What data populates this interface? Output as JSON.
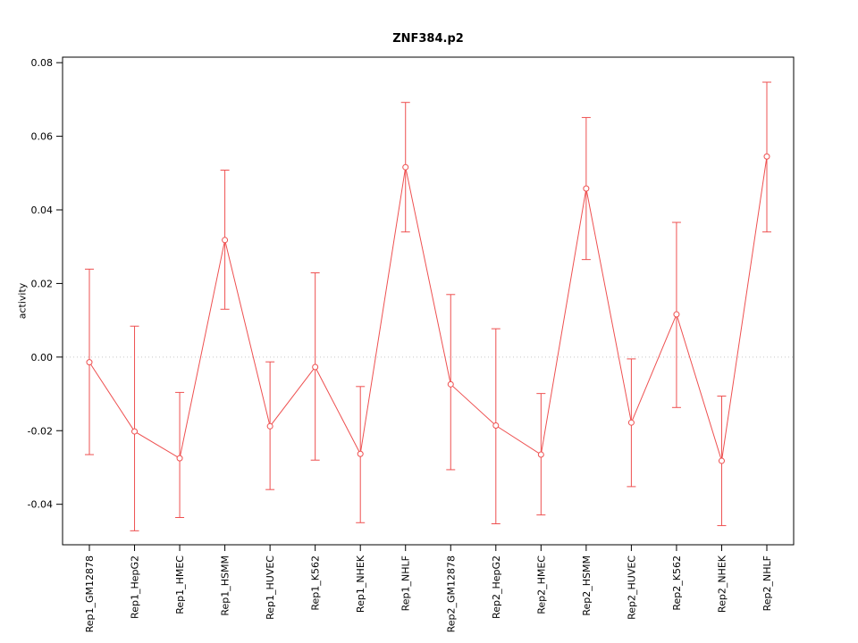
{
  "page": {
    "background": "#ffffff"
  },
  "chart_data": {
    "type": "line",
    "title": "ZNF384.p2",
    "ylabel": "activity",
    "xlabel": "",
    "legend": "none",
    "grid": false,
    "zero_line": true,
    "marker": "open-circle",
    "error_bars": true,
    "frame_color": "#000000",
    "zero_line_color": "#c8c8c8",
    "categories": [
      "Rep1_GM12878",
      "Rep1_HepG2",
      "Rep1_HMEC",
      "Rep1_HSMM",
      "Rep1_HUVEC",
      "Rep1_K562",
      "Rep1_NHEK",
      "Rep1_NHLF",
      "Rep2_GM12878",
      "Rep2_HepG2",
      "Rep2_HMEC",
      "Rep2_HSMM",
      "Rep2_HUVEC",
      "Rep2_K562",
      "Rep2_NHEK",
      "Rep2_NHLF"
    ],
    "series": [
      {
        "name": "activity",
        "color": "#ee5050",
        "values": [
          -0.0014,
          -0.0202,
          -0.0275,
          0.0318,
          -0.0188,
          -0.0027,
          -0.0263,
          0.0516,
          -0.0074,
          -0.0186,
          -0.0265,
          0.0458,
          -0.0178,
          0.0116,
          -0.0282,
          0.0545
        ],
        "ci_high": [
          0.0239,
          0.0084,
          -0.0096,
          0.0508,
          -0.0013,
          0.0229,
          -0.008,
          0.0692,
          0.017,
          0.0077,
          -0.0099,
          0.0651,
          -0.0005,
          0.0366,
          -0.0106,
          0.0747
        ],
        "ci_low": [
          -0.0265,
          -0.0472,
          -0.0436,
          0.013,
          -0.036,
          -0.028,
          -0.045,
          0.034,
          -0.0306,
          -0.0453,
          -0.0429,
          0.0265,
          -0.0352,
          -0.0137,
          -0.0458,
          0.034
        ]
      }
    ],
    "ylim": [
      -0.051,
      0.0815
    ],
    "yticks": [
      -0.04,
      -0.02,
      0,
      0.02,
      0.04,
      0.06,
      0.08
    ],
    "ytick_labels": [
      "-0.04",
      "-0.02",
      "0.00",
      "0.02",
      "0.04",
      "0.06",
      "0.08"
    ]
  }
}
